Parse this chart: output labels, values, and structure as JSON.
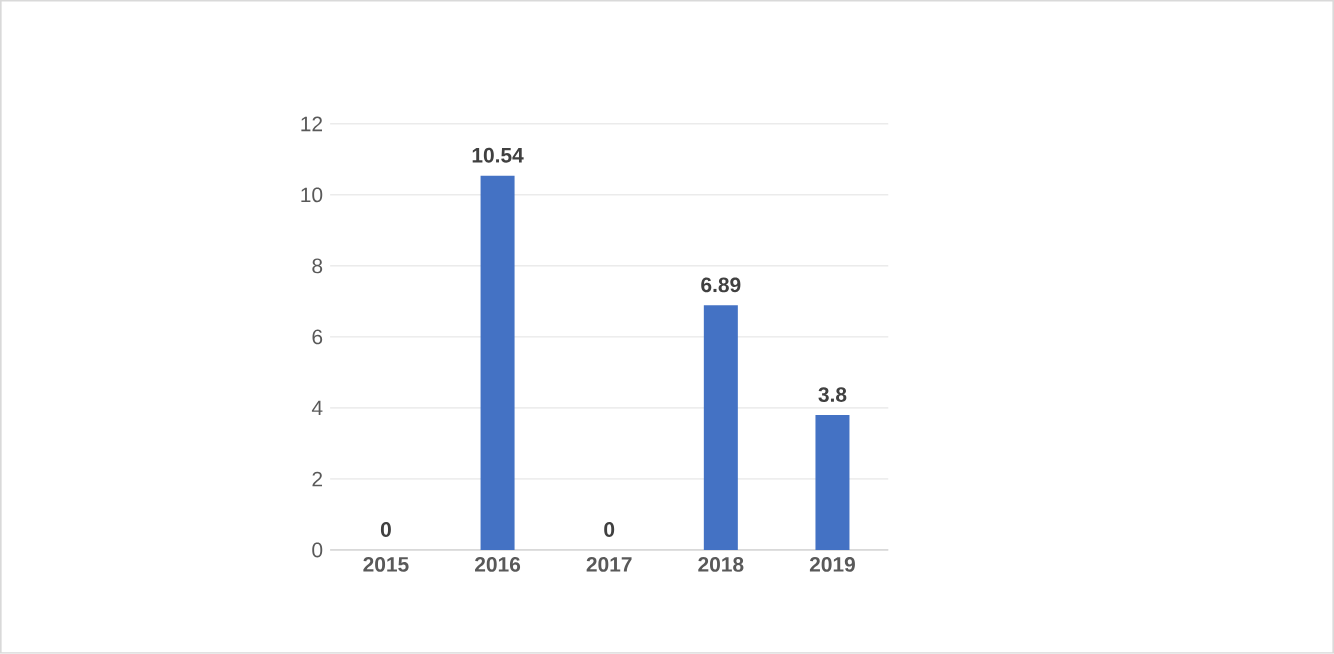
{
  "chart_data": {
    "type": "bar",
    "categories": [
      "2015",
      "2016",
      "2017",
      "2018",
      "2019"
    ],
    "values": [
      0,
      10.54,
      0,
      6.89,
      3.8
    ],
    "color": "#4472c4",
    "ylim": [
      0,
      12
    ],
    "yticks": [
      0,
      2,
      4,
      6,
      8,
      10,
      12
    ],
    "grid": "y",
    "data_labels": true
  }
}
